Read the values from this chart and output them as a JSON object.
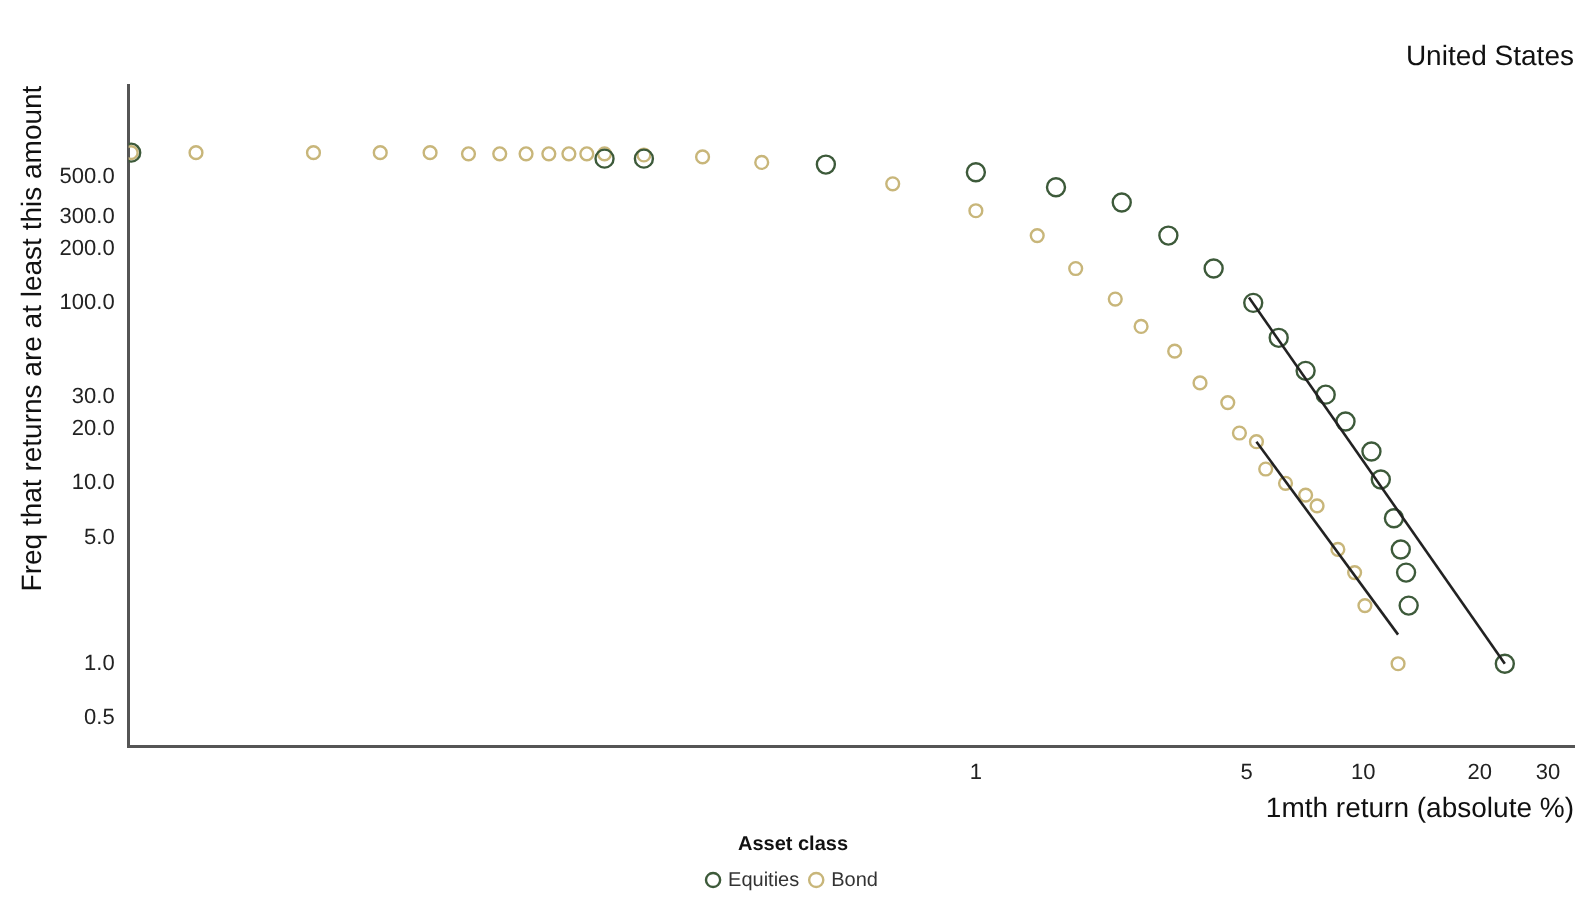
{
  "chart_data": {
    "type": "scatter",
    "title": "United States",
    "xlabel": "1mth return (absolute %)",
    "ylabel": "Freq that returns are at least this amount",
    "legend_title": "Asset class",
    "legend": "bottom",
    "log": "xy",
    "grid": false,
    "marker": "circle",
    "xlim": [
      0.0065,
      35
    ],
    "xticks": [
      1,
      5,
      10,
      20,
      30
    ],
    "ylim": [
      0.35,
      1600
    ],
    "yticks": [
      {
        "value": 0.5,
        "label": "0.5"
      },
      {
        "value": 1,
        "label": "1.0"
      },
      {
        "value": 5,
        "label": "5.0"
      },
      {
        "value": 10,
        "label": "10.0"
      },
      {
        "value": 20,
        "label": "20.0"
      },
      {
        "value": 30,
        "label": "30.0"
      },
      {
        "value": 100,
        "label": "100.0"
      },
      {
        "value": 200,
        "label": "200.0"
      },
      {
        "value": 300,
        "label": "300.0"
      },
      {
        "value": 500,
        "label": "500.0"
      }
    ],
    "series": [
      {
        "name": "Equities",
        "color": "#3d5a3a",
        "x": [
          0.0066,
          0.11,
          0.139,
          0.41,
          1.0,
          1.61,
          2.38,
          3.14,
          4.11,
          5.2,
          6.05,
          7.1,
          8.0,
          9.0,
          10.5,
          11.1,
          12.0,
          12.5,
          12.9,
          13.1,
          23.2
        ],
        "values": [
          680,
          630,
          630,
          584,
          530,
          437,
          360,
          236,
          155,
          100,
          64,
          42,
          31,
          22,
          15,
          10.5,
          6.4,
          4.3,
          3.2,
          2.1,
          1
        ]
      },
      {
        "name": "Bond",
        "color": "#c8b67a",
        "x": [
          0.0066,
          0.0097,
          0.0195,
          0.029,
          0.039,
          0.049,
          0.059,
          0.069,
          0.079,
          0.089,
          0.099,
          0.11,
          0.139,
          0.197,
          0.28,
          0.61,
          1.0,
          1.44,
          1.81,
          2.29,
          2.67,
          3.26,
          3.79,
          4.47,
          4.79,
          5.3,
          5.6,
          6.3,
          7.1,
          7.6,
          8.6,
          9.5,
          10.1,
          12.3
        ],
        "values": [
          680,
          680,
          680,
          680,
          680,
          670,
          670,
          670,
          670,
          670,
          670,
          670,
          660,
          644,
          600,
          457,
          324,
          236,
          155,
          105,
          74,
          54,
          36,
          28,
          19,
          17,
          12,
          10,
          8.6,
          7.5,
          4.3,
          3.2,
          2.1,
          1
        ]
      },
      {
        "type": "line",
        "color": "#222222",
        "line_style": "solid",
        "marker": "none",
        "x": [
          5.3,
          12.3
        ],
        "values": [
          17,
          1.45
        ]
      },
      {
        "type": "line",
        "color": "#222222",
        "line_style": "solid",
        "marker": "none",
        "x": [
          5.07,
          23.2
        ],
        "values": [
          107,
          1
        ]
      }
    ]
  }
}
